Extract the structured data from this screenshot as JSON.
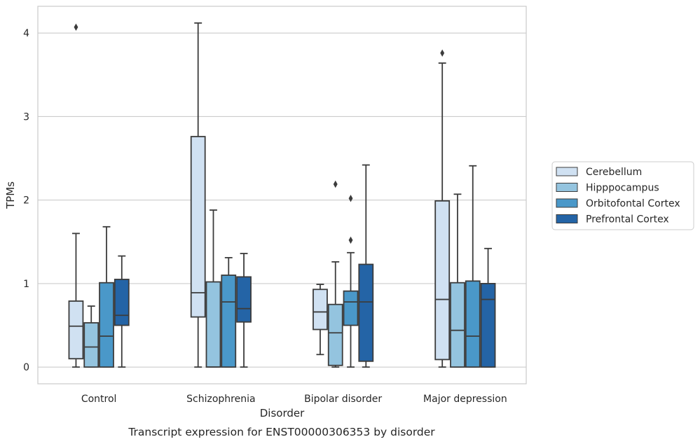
{
  "chart_data": {
    "type": "boxplot",
    "caption": "Transcript expression for ENST00000306353 by disorder",
    "xlabel": "Disorder",
    "ylabel": "TPMs",
    "ylim": [
      -0.2,
      4.32
    ],
    "yticks": [
      0,
      1,
      2,
      3,
      4
    ],
    "grid": "horizontal",
    "legend_position": "right",
    "categories": [
      "Control",
      "Schizophrenia",
      "Bipolar disorder",
      "Major depression"
    ],
    "series": [
      {
        "name": "Cerebellum",
        "color": "#d0e1f2",
        "boxes": [
          {
            "whislo": 0.0,
            "q1": 0.1,
            "med": 0.49,
            "q3": 0.79,
            "whishi": 1.6,
            "fliers": [
              4.07
            ]
          },
          {
            "whislo": 0.0,
            "q1": 0.6,
            "med": 0.89,
            "q3": 2.76,
            "whishi": 4.12,
            "fliers": []
          },
          {
            "whislo": 0.15,
            "q1": 0.45,
            "med": 0.66,
            "q3": 0.93,
            "whishi": 0.99,
            "fliers": []
          },
          {
            "whislo": 0.0,
            "q1": 0.09,
            "med": 0.81,
            "q3": 1.99,
            "whishi": 3.64,
            "fliers": [
              3.76
            ]
          }
        ]
      },
      {
        "name": "Hipppocampus",
        "color": "#94c4df",
        "boxes": [
          {
            "whislo": 0.0,
            "q1": 0.0,
            "med": 0.24,
            "q3": 0.53,
            "whishi": 0.73,
            "fliers": []
          },
          {
            "whislo": 0.0,
            "q1": 0.0,
            "med": 0.0,
            "q3": 1.02,
            "whishi": 1.88,
            "fliers": []
          },
          {
            "whislo": 0.0,
            "q1": 0.02,
            "med": 0.41,
            "q3": 0.75,
            "whishi": 1.26,
            "fliers": [
              2.19
            ]
          },
          {
            "whislo": 0.0,
            "q1": 0.0,
            "med": 0.44,
            "q3": 1.01,
            "whishi": 2.07,
            "fliers": []
          }
        ]
      },
      {
        "name": "Orbitofontal Cortex",
        "color": "#4a98c9",
        "boxes": [
          {
            "whislo": 0.0,
            "q1": 0.0,
            "med": 0.37,
            "q3": 1.01,
            "whishi": 1.68,
            "fliers": []
          },
          {
            "whislo": 0.0,
            "q1": 0.0,
            "med": 0.78,
            "q3": 1.1,
            "whishi": 1.31,
            "fliers": []
          },
          {
            "whislo": 0.0,
            "q1": 0.5,
            "med": 0.78,
            "q3": 0.91,
            "whishi": 1.37,
            "fliers": [
              2.02,
              1.52
            ]
          },
          {
            "whislo": 0.0,
            "q1": 0.0,
            "med": 0.37,
            "q3": 1.03,
            "whishi": 2.41,
            "fliers": []
          }
        ]
      },
      {
        "name": "Prefrontal Cortex",
        "color": "#2464a6",
        "boxes": [
          {
            "whislo": 0.0,
            "q1": 0.5,
            "med": 0.62,
            "q3": 1.05,
            "whishi": 1.33,
            "fliers": []
          },
          {
            "whislo": 0.0,
            "q1": 0.54,
            "med": 0.7,
            "q3": 1.08,
            "whishi": 1.36,
            "fliers": []
          },
          {
            "whislo": 0.0,
            "q1": 0.07,
            "med": 0.78,
            "q3": 1.23,
            "whishi": 2.42,
            "fliers": []
          },
          {
            "whislo": 0.0,
            "q1": 0.0,
            "med": 0.81,
            "q3": 1.0,
            "whishi": 1.42,
            "fliers": []
          }
        ]
      }
    ]
  }
}
